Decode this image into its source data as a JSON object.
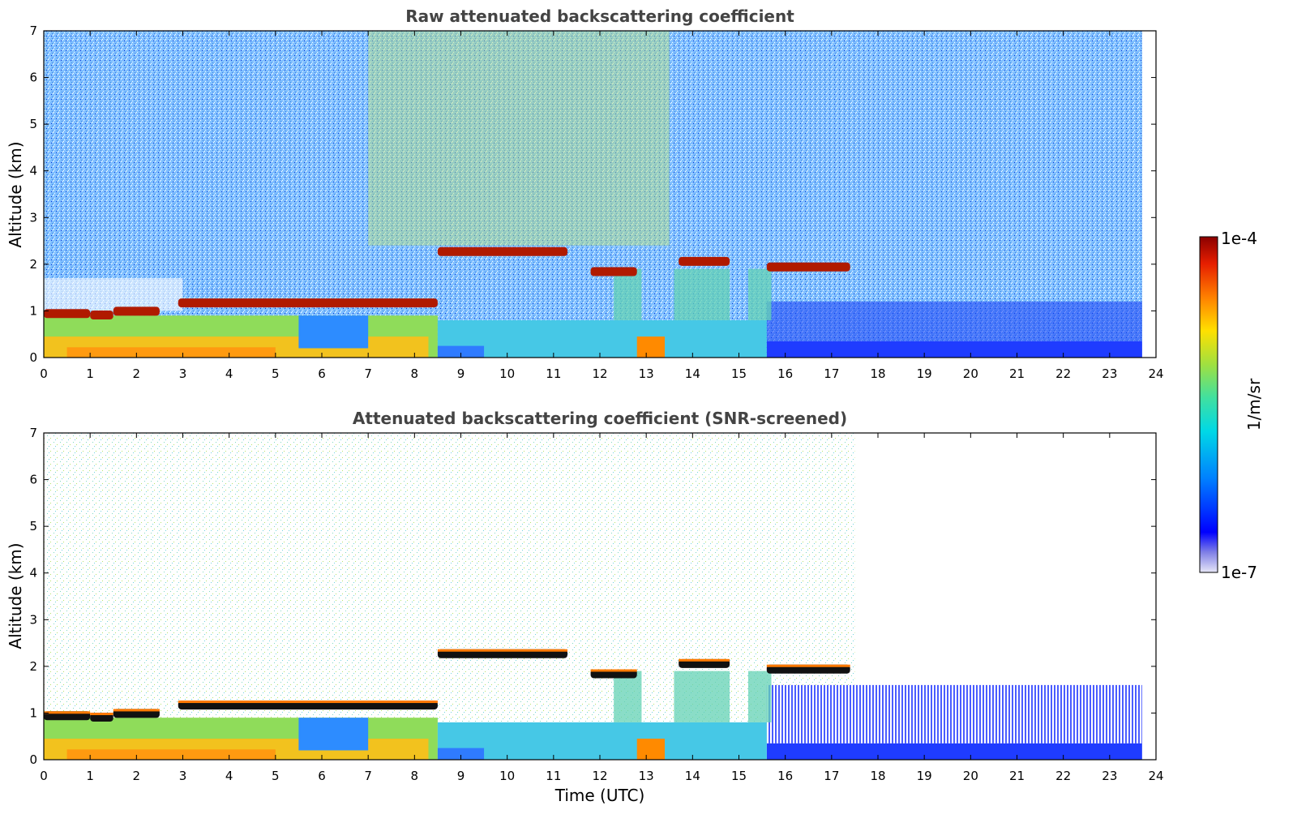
{
  "chart_data": [
    {
      "type": "heatmap",
      "title": "Raw attenuated backscattering coefficient",
      "xlabel": "",
      "ylabel": "Altitude (km)",
      "xlim": [
        0,
        24
      ],
      "ylim": [
        0,
        7
      ],
      "xticks": [
        "0",
        "1",
        "2",
        "3",
        "4",
        "5",
        "6",
        "7",
        "8",
        "9",
        "10",
        "11",
        "12",
        "13",
        "14",
        "15",
        "16",
        "17",
        "18",
        "19",
        "20",
        "21",
        "22",
        "23",
        "24"
      ],
      "yticks": [
        "0",
        "1",
        "2",
        "3",
        "4",
        "5",
        "6",
        "7"
      ],
      "data_end_time": 23.7,
      "layers": [
        {
          "feature": "boundary-layer top",
          "t_start": 0,
          "t_end": 1.0,
          "altitude_km": 0.95
        },
        {
          "feature": "boundary-layer top",
          "t_start": 1.0,
          "t_end": 1.5,
          "altitude_km": 0.92
        },
        {
          "feature": "boundary-layer top",
          "t_start": 1.5,
          "t_end": 2.5,
          "altitude_km": 1.0
        },
        {
          "feature": "boundary-layer top",
          "t_start": 2.9,
          "t_end": 8.5,
          "altitude_km": 1.18
        },
        {
          "feature": "cloud",
          "t_start": 8.5,
          "t_end": 11.3,
          "altitude_km": 2.28
        },
        {
          "feature": "cloud",
          "t_start": 11.8,
          "t_end": 12.8,
          "altitude_km": 1.85
        },
        {
          "feature": "cloud",
          "t_start": 13.7,
          "t_end": 14.8,
          "altitude_km": 2.07
        },
        {
          "feature": "cloud",
          "t_start": 15.6,
          "t_end": 17.4,
          "altitude_km": 1.95
        }
      ],
      "noise_free_boundary_layer_top_km": [
        {
          "time": 0,
          "value": 0.95
        },
        {
          "time": 8.5,
          "value": 1.2
        },
        {
          "time": 15.5,
          "value": 0.35
        },
        {
          "time": 23.7,
          "value": 0.3
        }
      ]
    },
    {
      "type": "heatmap",
      "title": "Attenuated backscattering coefficient (SNR-screened)",
      "xlabel": "Time (UTC)",
      "ylabel": "Altitude (km)",
      "xlim": [
        0,
        24
      ],
      "ylim": [
        0,
        7
      ],
      "xticks": [
        "0",
        "1",
        "2",
        "3",
        "4",
        "5",
        "6",
        "7",
        "8",
        "9",
        "10",
        "11",
        "12",
        "13",
        "14",
        "15",
        "16",
        "17",
        "18",
        "19",
        "20",
        "21",
        "22",
        "23",
        "24"
      ],
      "yticks": [
        "0",
        "1",
        "2",
        "3",
        "4",
        "5",
        "6",
        "7"
      ],
      "data_end_time": 23.7
    }
  ],
  "colorbar": {
    "label": "1/m/sr",
    "max_label": "1e-4",
    "min_label": "1e-7",
    "scale": "log",
    "range": [
      1e-07,
      0.0001
    ],
    "colormap": [
      "#e6e6f7",
      "#7f7fe6",
      "#0000ff",
      "#0080ff",
      "#00d8e6",
      "#40e0a0",
      "#a0e040",
      "#ffe000",
      "#ff8000",
      "#e61e00",
      "#8b0000"
    ]
  }
}
